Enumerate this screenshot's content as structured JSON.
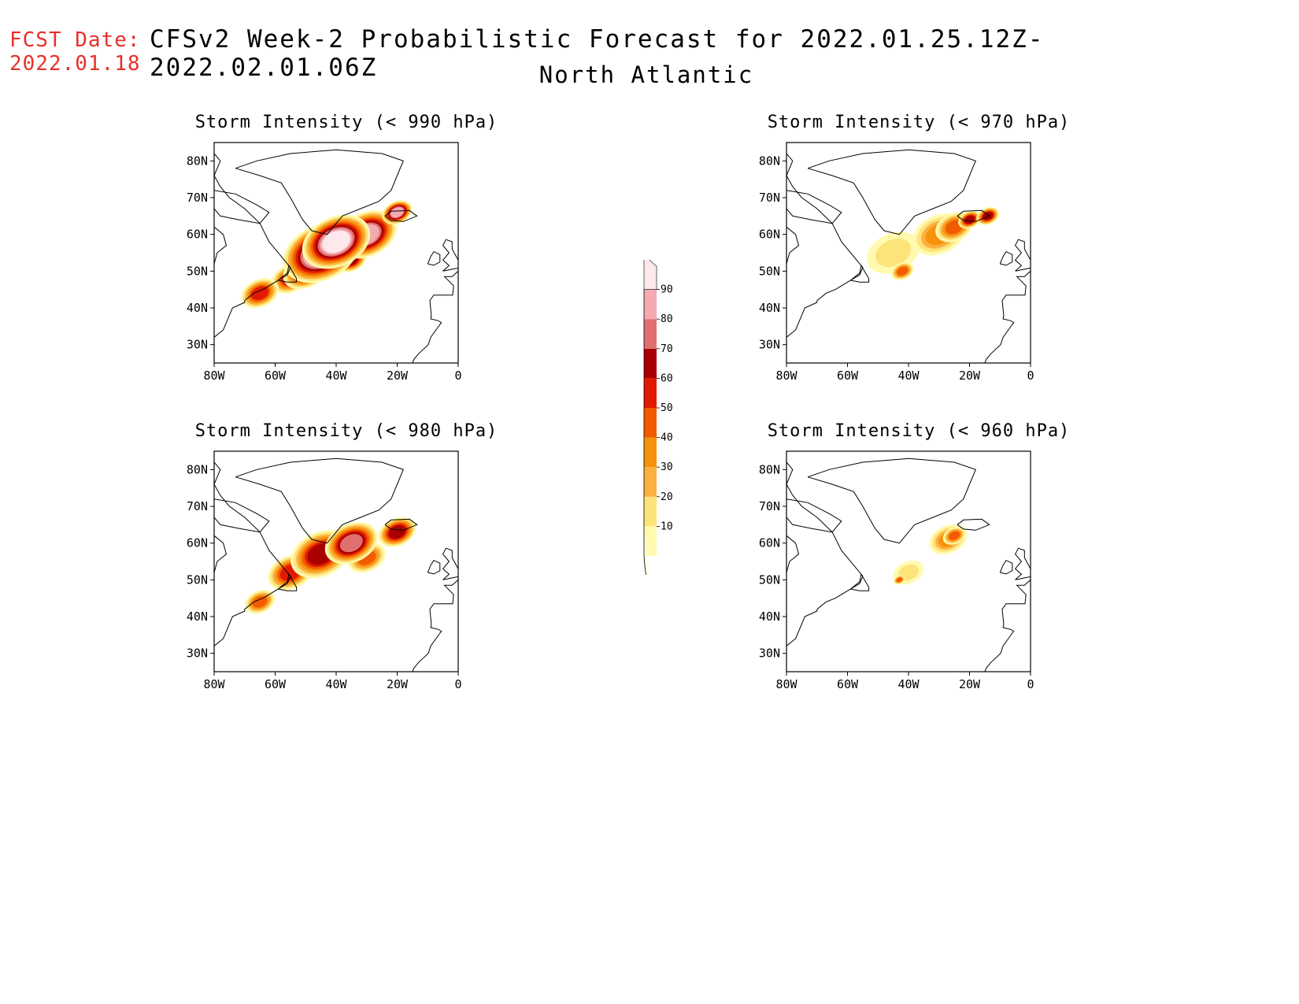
{
  "forecast_date": {
    "label": "FCST Date:",
    "value": "2022.01.18"
  },
  "title": {
    "line1": "CFSv2 Week-2 Probabilistic Forecast for 2022.01.25.12Z-2022.02.01.06Z",
    "line2": "North Atlantic"
  },
  "axes": {
    "lat_labels": [
      "80N",
      "70N",
      "60N",
      "50N",
      "40N",
      "30N"
    ],
    "lon_labels": [
      "80W",
      "60W",
      "40W",
      "20W",
      "0"
    ]
  },
  "panels": [
    {
      "id": "p990",
      "title": "Storm Intensity (< 990 hPa)"
    },
    {
      "id": "p970",
      "title": "Storm Intensity (< 970 hPa)"
    },
    {
      "id": "p980",
      "title": "Storm Intensity (< 980 hPa)"
    },
    {
      "id": "p960",
      "title": "Storm Intensity (< 960 hPa)"
    }
  ],
  "legend": {
    "levels": [
      "10",
      "20",
      "30",
      "40",
      "50",
      "60",
      "70",
      "80",
      "90"
    ],
    "colors": [
      "#fffab0",
      "#fde47a",
      "#fbb040",
      "#f7920d",
      "#f25a00",
      "#e01a00",
      "#a80000",
      "#e07070",
      "#f4aab0",
      "#fde8ec"
    ]
  },
  "map_data": {
    "region": "North Atlantic",
    "extent": {
      "lon": [
        -80,
        0
      ],
      "lat": [
        25,
        85
      ]
    },
    "probability_fields": [
      {
        "panel": "p990",
        "blobs": [
          {
            "lon": -45,
            "lat": 55,
            "level": 9,
            "r": 10
          },
          {
            "lon": -40,
            "lat": 58,
            "level": 9,
            "r": 9
          },
          {
            "lon": -30,
            "lat": 60,
            "level": 8,
            "r": 8
          },
          {
            "lon": -50,
            "lat": 50,
            "level": 6,
            "r": 6
          },
          {
            "lon": -55,
            "lat": 48,
            "level": 5,
            "r": 5
          },
          {
            "lon": -65,
            "lat": 44,
            "level": 5,
            "r": 5
          },
          {
            "lon": -20,
            "lat": 66,
            "level": 8,
            "r": 4
          },
          {
            "lon": -35,
            "lat": 53,
            "level": 6,
            "r": 4
          }
        ]
      },
      {
        "panel": "p970",
        "blobs": [
          {
            "lon": -30,
            "lat": 60,
            "level": 3,
            "r": 7
          },
          {
            "lon": -25,
            "lat": 62,
            "level": 4,
            "r": 5
          },
          {
            "lon": -20,
            "lat": 64,
            "level": 6,
            "r": 3
          },
          {
            "lon": -45,
            "lat": 55,
            "level": 1,
            "r": 7
          },
          {
            "lon": -42,
            "lat": 50,
            "level": 4,
            "r": 3
          },
          {
            "lon": -14,
            "lat": 65,
            "level": 6,
            "r": 3
          }
        ]
      },
      {
        "panel": "p980",
        "blobs": [
          {
            "lon": -45,
            "lat": 57,
            "level": 6,
            "r": 8
          },
          {
            "lon": -35,
            "lat": 60,
            "level": 7,
            "r": 7
          },
          {
            "lon": -20,
            "lat": 63,
            "level": 6,
            "r": 5
          },
          {
            "lon": -55,
            "lat": 52,
            "level": 5,
            "r": 6
          },
          {
            "lon": -65,
            "lat": 44,
            "level": 4,
            "r": 4
          },
          {
            "lon": -30,
            "lat": 56,
            "level": 4,
            "r": 5
          }
        ]
      },
      {
        "panel": "p960",
        "blobs": [
          {
            "lon": -27,
            "lat": 61,
            "level": 3,
            "r": 5
          },
          {
            "lon": -25,
            "lat": 62,
            "level": 4,
            "r": 3
          },
          {
            "lon": -40,
            "lat": 52,
            "level": 1,
            "r": 4
          },
          {
            "lon": -43,
            "lat": 50,
            "level": 4,
            "r": 1.5
          }
        ]
      }
    ]
  }
}
